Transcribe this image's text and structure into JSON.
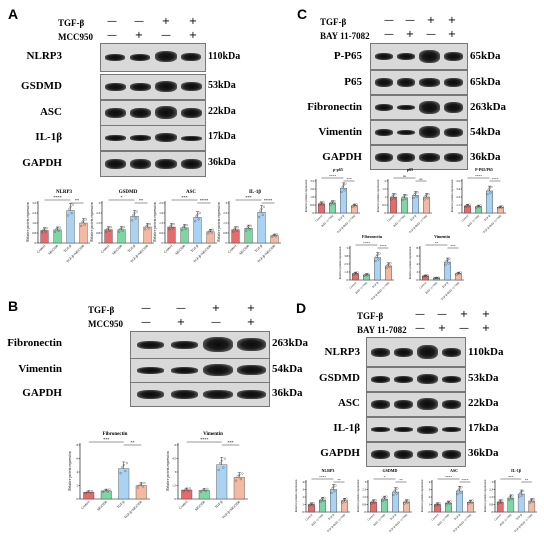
{
  "panels": {
    "A": {
      "letter": "A",
      "treatments": [
        {
          "label": "TGF-β",
          "signs": [
            "—",
            "—",
            "+",
            "+"
          ]
        },
        {
          "label": "MCC950",
          "signs": [
            "—",
            "+",
            "—",
            "+"
          ]
        }
      ],
      "blots": [
        {
          "protein": "NLRP3",
          "kda": "110kDa"
        },
        {
          "protein": "GSDMD",
          "kda": "53kDa"
        },
        {
          "protein": "ASC",
          "kda": "22kDa"
        },
        {
          "protein": "IL-1β",
          "kda": "17kDa"
        },
        {
          "protein": "GAPDH",
          "kda": "36kDa"
        }
      ]
    },
    "B": {
      "letter": "B",
      "treatments": [
        {
          "label": "TGF-β",
          "signs": [
            "—",
            "—",
            "+",
            "+"
          ]
        },
        {
          "label": "MCC950",
          "signs": [
            "—",
            "+",
            "—",
            "+"
          ]
        }
      ],
      "blots": [
        {
          "protein": "Fibronectin",
          "kda": "263kDa"
        },
        {
          "protein": "Vimentin",
          "kda": "54kDa"
        },
        {
          "protein": "GAPDH",
          "kda": "36kDa"
        }
      ]
    },
    "C": {
      "letter": "C",
      "treatments": [
        {
          "label": "TGF-β",
          "signs": [
            "—",
            "—",
            "+",
            "+"
          ]
        },
        {
          "label": "BAY 11-7082",
          "signs": [
            "—",
            "+",
            "—",
            "+"
          ]
        }
      ],
      "blots": [
        {
          "protein": "P-P65",
          "kda": "65kDa"
        },
        {
          "protein": "P65",
          "kda": "65kDa"
        },
        {
          "protein": "Fibronectin",
          "kda": "263kDa"
        },
        {
          "protein": "Vimentin",
          "kda": "54kDa"
        },
        {
          "protein": "GAPDH",
          "kda": "36kDa"
        }
      ]
    },
    "D": {
      "letter": "D",
      "treatments": [
        {
          "label": "TGF-β",
          "signs": [
            "—",
            "—",
            "+",
            "+"
          ]
        },
        {
          "label": "BAY 11-7082",
          "signs": [
            "—",
            "+",
            "—",
            "+"
          ]
        }
      ],
      "blots": [
        {
          "protein": "NLRP3",
          "kda": "110kDa"
        },
        {
          "protein": "GSDMD",
          "kda": "53kDa"
        },
        {
          "protein": "ASC",
          "kda": "22kDa"
        },
        {
          "protein": "IL-1β",
          "kda": "17kDa"
        },
        {
          "protein": "GAPDH",
          "kda": "36kDa"
        }
      ]
    }
  },
  "chart_data": [
    {
      "id": "A1",
      "type": "bar",
      "title": "NLRP3",
      "ylabel": "Relative protein expression",
      "categories": [
        "Control",
        "MCC950",
        "TGF-β",
        "TGF-β+MCC950"
      ],
      "values": [
        1.0,
        1.05,
        2.6,
        1.6
      ],
      "ylim": [
        0,
        3.2
      ],
      "sig": [
        "****",
        "**"
      ]
    },
    {
      "id": "A2",
      "type": "bar",
      "title": "GSDMD",
      "ylabel": "Relative protein expression",
      "categories": [
        "Control",
        "MCC950",
        "TGF-β",
        "TGF-β+MCC950"
      ],
      "values": [
        1.0,
        1.0,
        2.0,
        1.2
      ],
      "ylim": [
        0,
        3.0
      ],
      "sig": [
        "*",
        "**"
      ]
    },
    {
      "id": "A3",
      "type": "bar",
      "title": "ASC",
      "ylabel": "Relative protein expression",
      "categories": [
        "Control",
        "MCC950",
        "TGF-β",
        "TGF-β+MCC950"
      ],
      "values": [
        1.0,
        0.95,
        1.6,
        0.7
      ],
      "ylim": [
        0,
        2.5
      ],
      "sig": [
        "***",
        "****"
      ]
    },
    {
      "id": "A4",
      "type": "bar",
      "title": "IL-1β",
      "ylabel": "Relative protein expression",
      "categories": [
        "Control",
        "MCC950",
        "TGF-β",
        "TGF-β+MCC950"
      ],
      "values": [
        1.0,
        1.1,
        2.3,
        0.55
      ],
      "ylim": [
        0,
        3.0
      ],
      "sig": [
        "***",
        "****"
      ]
    },
    {
      "id": "B1",
      "type": "bar",
      "title": "Fibronectin",
      "ylabel": "Relative protein expression",
      "categories": [
        "Control",
        "MCC950",
        "TGF-β",
        "TGF-β+MCC950"
      ],
      "values": [
        1.0,
        1.2,
        4.5,
        2.0
      ],
      "ylim": [
        0,
        8
      ],
      "sig": [
        "***",
        "**"
      ]
    },
    {
      "id": "B2",
      "type": "bar",
      "title": "Vimentin",
      "ylabel": "Relative protein expression",
      "categories": [
        "Control",
        "MCC950",
        "TGF-β",
        "TGF-β+MCC950"
      ],
      "values": [
        1.0,
        0.95,
        3.8,
        2.4
      ],
      "ylim": [
        0,
        6
      ],
      "sig": [
        "****",
        "***"
      ]
    },
    {
      "id": "C1",
      "type": "bar",
      "title": "p-p65",
      "ylabel": "Relative protein expression",
      "categories": [
        "Control",
        "BAY 11-7082",
        "TGF-β",
        "TGF-β+BAY 11-7082"
      ],
      "values": [
        1.0,
        1.1,
        2.7,
        0.8
      ],
      "ylim": [
        0,
        3.5
      ],
      "sig": [
        "****",
        "***"
      ]
    },
    {
      "id": "C2",
      "type": "bar",
      "title": "p65",
      "ylabel": "Relative protein expression",
      "categories": [
        "Control",
        "BAY 11-7082",
        "TGF-β",
        "TGF-β+BAY 11-7082"
      ],
      "values": [
        1.0,
        0.95,
        1.1,
        1.0
      ],
      "ylim": [
        0,
        2.0
      ],
      "sig": [
        "ns",
        "ns"
      ]
    },
    {
      "id": "C3",
      "type": "bar",
      "title": "P-P65/P65",
      "ylabel": "Relative protein expression",
      "categories": [
        "Control",
        "BAY 11-7082",
        "TGF-β",
        "TGF-β+BAY 11-7082"
      ],
      "values": [
        1.0,
        0.9,
        3.1,
        0.8
      ],
      "ylim": [
        0,
        4.5
      ],
      "sig": [
        "****",
        "****"
      ]
    },
    {
      "id": "C4",
      "type": "bar",
      "title": "Fibronectin",
      "ylabel": "Relative protein expression",
      "categories": [
        "Control",
        "BAY 11-7082",
        "TGF-β",
        "TGF-β+BAY 11-7082"
      ],
      "values": [
        1.0,
        0.8,
        3.5,
        2.2
      ],
      "ylim": [
        0,
        5
      ],
      "sig": [
        "****",
        "****"
      ]
    },
    {
      "id": "C5",
      "type": "bar",
      "title": "Vimentin",
      "ylabel": "Relative protein expression",
      "categories": [
        "Control",
        "BAY 11-7082",
        "TGF-β",
        "TGF-β+BAY 11-7082"
      ],
      "values": [
        1.0,
        0.5,
        4.5,
        1.6
      ],
      "ylim": [
        0,
        8
      ],
      "sig": [
        "**",
        "***"
      ]
    },
    {
      "id": "D1",
      "type": "bar",
      "title": "NLRP3",
      "ylabel": "Relative protein expression",
      "categories": [
        "Control",
        "BAY 11-7082",
        "TGF-β",
        "TGF-β+BAY 11-7082"
      ],
      "values": [
        1.0,
        1.6,
        3.0,
        1.5
      ],
      "ylim": [
        0,
        4
      ],
      "sig": [
        "****",
        "**"
      ]
    },
    {
      "id": "D2",
      "type": "bar",
      "title": "GSDMD",
      "ylabel": "Relative protein expression",
      "categories": [
        "Control",
        "BAY 11-7082",
        "TGF-β",
        "TGF-β+BAY 11-7082"
      ],
      "values": [
        1.0,
        1.3,
        2.0,
        1.0
      ],
      "ylim": [
        0,
        3
      ],
      "sig": [
        "*",
        "**"
      ]
    },
    {
      "id": "D3",
      "type": "bar",
      "title": "ASC",
      "ylabel": "Relative protein expression",
      "categories": [
        "Control",
        "BAY 11-7082",
        "TGF-β",
        "TGF-β+BAY 11-7082"
      ],
      "values": [
        1.0,
        1.2,
        2.8,
        1.3
      ],
      "ylim": [
        0,
        4
      ],
      "sig": [
        "****",
        "****"
      ]
    },
    {
      "id": "D4",
      "type": "bar",
      "title": "IL-1β",
      "ylabel": "Relative protein expression",
      "categories": [
        "Control",
        "BAY 11-7082",
        "TGF-β",
        "TGF-β+BAY 11-7082"
      ],
      "values": [
        1.0,
        1.4,
        1.8,
        1.1
      ],
      "ylim": [
        0,
        3
      ],
      "sig": [
        "***",
        "**"
      ]
    }
  ],
  "colors": {
    "c1": "#e26d6d",
    "c2": "#7fd6a4",
    "c3": "#a9d2f3",
    "c4": "#f4b9a2",
    "edge": "#444444"
  }
}
